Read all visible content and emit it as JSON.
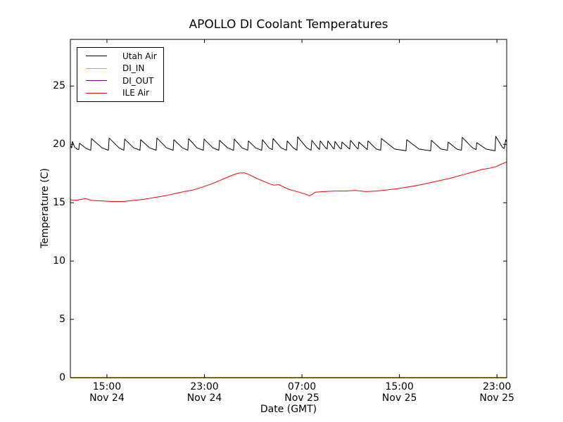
{
  "chart_data": {
    "type": "line",
    "title": "APOLLO DI Coolant Temperatures",
    "xlabel": "Date (GMT)",
    "ylabel": "Temperature (C)",
    "grid": false,
    "legend_position": "upper left",
    "x_unit": "hours after Nov 24 12:00 GMT",
    "xlim": [
      0,
      35.8
    ],
    "ylim": [
      0,
      29
    ],
    "xticks": [
      {
        "t": 3,
        "time": "15:00",
        "date": "Nov 24"
      },
      {
        "t": 11,
        "time": "23:00",
        "date": "Nov 24"
      },
      {
        "t": 19,
        "time": "07:00",
        "date": "Nov 25"
      },
      {
        "t": 27,
        "time": "15:00",
        "date": "Nov 25"
      },
      {
        "t": 35,
        "time": "23:00",
        "date": "Nov 25"
      }
    ],
    "yticks": [
      0,
      5,
      10,
      15,
      20,
      25
    ],
    "series": [
      {
        "name": "Utah Air",
        "color": "#000000",
        "points": [
          [
            0.0,
            19.9
          ],
          [
            0.11,
            19.7
          ],
          [
            0.17,
            20.25
          ],
          [
            0.35,
            19.75
          ],
          [
            0.55,
            19.6
          ],
          [
            0.69,
            19.55
          ],
          [
            0.75,
            20.1
          ],
          [
            1.3,
            19.65
          ],
          [
            1.67,
            19.5
          ],
          [
            1.73,
            20.5
          ],
          [
            2.6,
            19.7
          ],
          [
            3.12,
            19.5
          ],
          [
            3.18,
            20.55
          ],
          [
            4.0,
            19.7
          ],
          [
            4.39,
            19.5
          ],
          [
            4.45,
            20.45
          ],
          [
            5.2,
            19.7
          ],
          [
            5.71,
            19.5
          ],
          [
            5.77,
            20.4
          ],
          [
            6.5,
            19.7
          ],
          [
            7.04,
            19.5
          ],
          [
            7.1,
            20.55
          ],
          [
            7.9,
            19.7
          ],
          [
            8.43,
            19.5
          ],
          [
            8.49,
            20.4
          ],
          [
            9.2,
            19.7
          ],
          [
            9.64,
            19.5
          ],
          [
            9.7,
            20.5
          ],
          [
            10.4,
            19.7
          ],
          [
            10.91,
            19.5
          ],
          [
            10.97,
            20.45
          ],
          [
            11.7,
            19.7
          ],
          [
            12.18,
            19.5
          ],
          [
            12.24,
            20.35
          ],
          [
            12.9,
            19.7
          ],
          [
            13.39,
            19.5
          ],
          [
            13.45,
            20.45
          ],
          [
            14.1,
            19.7
          ],
          [
            14.55,
            19.5
          ],
          [
            14.61,
            20.3
          ],
          [
            15.2,
            19.7
          ],
          [
            15.7,
            19.5
          ],
          [
            15.76,
            20.4
          ],
          [
            16.3,
            19.7
          ],
          [
            16.57,
            19.55
          ],
          [
            16.63,
            20.5
          ],
          [
            17.3,
            19.7
          ],
          [
            17.73,
            19.5
          ],
          [
            17.79,
            20.3
          ],
          [
            18.3,
            19.7
          ],
          [
            18.59,
            19.5
          ],
          [
            18.65,
            20.65
          ],
          [
            19.4,
            19.7
          ],
          [
            19.75,
            19.5
          ],
          [
            19.81,
            20.35
          ],
          [
            20.3,
            19.7
          ],
          [
            20.44,
            19.55
          ],
          [
            20.5,
            20.3
          ],
          [
            20.95,
            19.7
          ],
          [
            21.07,
            19.6
          ],
          [
            21.13,
            20.3
          ],
          [
            21.55,
            19.7
          ],
          [
            21.65,
            19.6
          ],
          [
            21.71,
            20.25
          ],
          [
            22.1,
            19.7
          ],
          [
            22.23,
            19.6
          ],
          [
            22.29,
            20.2
          ],
          [
            22.8,
            19.7
          ],
          [
            22.92,
            19.6
          ],
          [
            22.98,
            20.35
          ],
          [
            23.5,
            19.7
          ],
          [
            23.61,
            19.6
          ],
          [
            23.67,
            20.2
          ],
          [
            24.2,
            19.7
          ],
          [
            24.36,
            19.55
          ],
          [
            24.42,
            20.3
          ],
          [
            25.1,
            19.6
          ],
          [
            25.46,
            19.5
          ],
          [
            25.52,
            20.5
          ],
          [
            26.6,
            19.6
          ],
          [
            27.54,
            19.45
          ],
          [
            27.6,
            20.4
          ],
          [
            28.6,
            19.6
          ],
          [
            29.56,
            19.45
          ],
          [
            29.62,
            20.35
          ],
          [
            30.4,
            19.6
          ],
          [
            30.94,
            19.5
          ],
          [
            31.0,
            20.2
          ],
          [
            31.7,
            19.6
          ],
          [
            32.09,
            19.5
          ],
          [
            32.15,
            20.6
          ],
          [
            33.0,
            19.7
          ],
          [
            33.29,
            19.55
          ],
          [
            33.35,
            20.15
          ],
          [
            34.1,
            19.6
          ],
          [
            34.84,
            19.45
          ],
          [
            34.9,
            20.7
          ],
          [
            35.45,
            19.75
          ],
          [
            35.6,
            19.65
          ],
          [
            35.72,
            20.4
          ],
          [
            35.8,
            20.2
          ]
        ]
      },
      {
        "name": "DI_IN",
        "color": "#ffa500",
        "points": [
          [
            0,
            0
          ],
          [
            35.8,
            0
          ]
        ]
      },
      {
        "name": "DI_OUT",
        "color": "#800080",
        "points": [
          [
            0,
            0
          ],
          [
            35.8,
            0
          ]
        ]
      },
      {
        "name": "ILE Air",
        "color": "#ff0000",
        "points": [
          [
            0,
            15.25
          ],
          [
            0.46,
            15.2
          ],
          [
            0.92,
            15.3
          ],
          [
            1.27,
            15.35
          ],
          [
            1.73,
            15.2
          ],
          [
            2.6,
            15.15
          ],
          [
            3.46,
            15.1
          ],
          [
            4.33,
            15.1
          ],
          [
            5.2,
            15.2
          ],
          [
            6.06,
            15.3
          ],
          [
            6.93,
            15.45
          ],
          [
            7.8,
            15.6
          ],
          [
            8.66,
            15.8
          ],
          [
            9.35,
            15.95
          ],
          [
            10.1,
            16.1
          ],
          [
            10.85,
            16.35
          ],
          [
            11.55,
            16.6
          ],
          [
            12.24,
            16.9
          ],
          [
            12.82,
            17.15
          ],
          [
            13.4,
            17.4
          ],
          [
            13.86,
            17.55
          ],
          [
            14.32,
            17.55
          ],
          [
            14.78,
            17.35
          ],
          [
            15.24,
            17.1
          ],
          [
            15.71,
            16.9
          ],
          [
            16.05,
            16.75
          ],
          [
            16.4,
            16.6
          ],
          [
            16.74,
            16.5
          ],
          [
            17.09,
            16.55
          ],
          [
            17.5,
            16.35
          ],
          [
            17.9,
            16.15
          ],
          [
            18.77,
            15.9
          ],
          [
            19.23,
            15.75
          ],
          [
            19.63,
            15.6
          ],
          [
            20.1,
            15.9
          ],
          [
            20.79,
            15.95
          ],
          [
            21.65,
            16.0
          ],
          [
            22.52,
            16.0
          ],
          [
            23.39,
            16.05
          ],
          [
            24.25,
            15.95
          ],
          [
            25.12,
            16.0
          ],
          [
            25.98,
            16.1
          ],
          [
            26.85,
            16.2
          ],
          [
            27.71,
            16.35
          ],
          [
            28.58,
            16.5
          ],
          [
            29.45,
            16.7
          ],
          [
            30.31,
            16.9
          ],
          [
            31.18,
            17.1
          ],
          [
            32.05,
            17.35
          ],
          [
            32.91,
            17.6
          ],
          [
            33.78,
            17.85
          ],
          [
            34.36,
            17.95
          ],
          [
            34.94,
            18.1
          ],
          [
            35.34,
            18.3
          ],
          [
            35.8,
            18.5
          ]
        ]
      }
    ]
  },
  "legend": {
    "entries": [
      {
        "label": "Utah Air",
        "color": "#000000"
      },
      {
        "label": "DI_IN",
        "color": "#ffa500"
      },
      {
        "label": "DI_OUT",
        "color": "#800080"
      },
      {
        "label": "ILE Air",
        "color": "#ff0000"
      }
    ]
  }
}
